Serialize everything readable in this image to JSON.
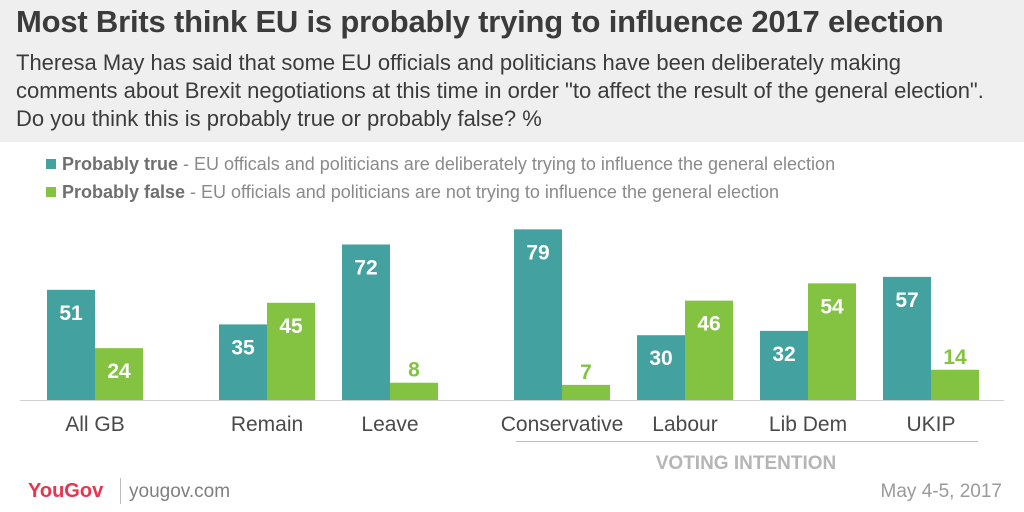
{
  "title": "Most Brits think EU is probably trying to influence 2017 election",
  "subtitle": "Theresa May has said that some EU officials and politicians have been deliberately making comments about Brexit negotiations at this time in order \"to affect the result of the general election\". Do you think this is probably true or probably false? %",
  "legend": [
    {
      "label": "Probably true",
      "description": " - EU officals and politicians are deliberately trying to influence the general election"
    },
    {
      "label": "Probably false",
      "description": " - EU officials and politicians are not trying to influence the general election"
    }
  ],
  "group_label": "VOTING INTENTION",
  "footer": {
    "brand": "YouGov",
    "url": "yougov.com",
    "date": "May 4-5, 2017"
  },
  "colors": {
    "true": "#43a1a0",
    "false": "#83c341",
    "text": "#3b3b3b",
    "muted": "#8a8a8a"
  },
  "chart_data": {
    "type": "bar",
    "categories": [
      "All GB",
      "Remain",
      "Leave",
      "Conservative",
      "Labour",
      "Lib Dem",
      "UKIP"
    ],
    "series": [
      {
        "name": "Probably true",
        "values": [
          51,
          35,
          72,
          79,
          30,
          32,
          57
        ]
      },
      {
        "name": "Probably false",
        "values": [
          24,
          45,
          8,
          7,
          46,
          54,
          14
        ]
      }
    ],
    "ylim": [
      0,
      100
    ],
    "legend_position": "top-left",
    "grid": false,
    "data_labels": true
  }
}
